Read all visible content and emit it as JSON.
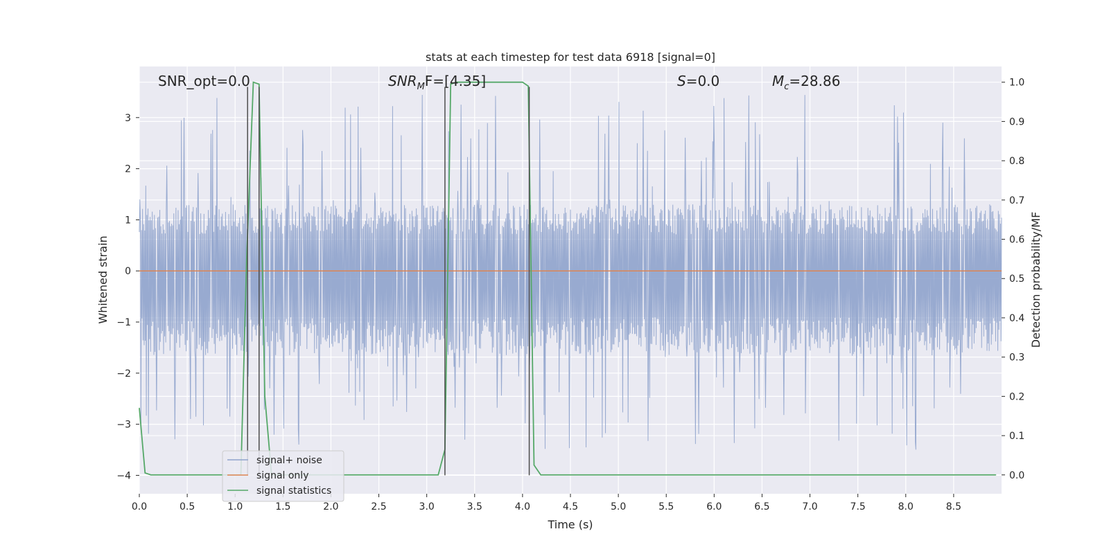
{
  "chart_data": {
    "type": "line",
    "title": "stats at each timestep for test data 6918 [signal=0]",
    "xlabel": "Time (s)",
    "ylabel_left": "Whitened strain",
    "ylabel_right": "Detection probability/MF",
    "xlim": [
      0,
      9
    ],
    "ylim_left": [
      -4.36,
      4.0
    ],
    "ylim_right": [
      -0.048,
      1.04
    ],
    "x_ticks": [
      0.0,
      0.5,
      1.0,
      1.5,
      2.0,
      2.5,
      3.0,
      3.5,
      4.0,
      4.5,
      5.0,
      5.5,
      6.0,
      6.5,
      7.0,
      7.5,
      8.0,
      8.5
    ],
    "x_tick_labels": [
      "0.0",
      "0.5",
      "1.0",
      "1.5",
      "2.0",
      "2.5",
      "3.0",
      "3.5",
      "4.0",
      "4.5",
      "5.0",
      "5.5",
      "6.0",
      "6.5",
      "7.0",
      "7.5",
      "8.0",
      "8.5"
    ],
    "y_ticks_left": [
      3,
      2,
      1,
      0,
      -1,
      -2,
      -3,
      -4
    ],
    "y_tick_labels_left": [
      "3",
      "2",
      "1",
      "0",
      "−1",
      "−2",
      "−3",
      "−4"
    ],
    "y_ticks_right": [
      1.0,
      0.9,
      0.8,
      0.7,
      0.6,
      0.5,
      0.4,
      0.3,
      0.2,
      0.1,
      0.0
    ],
    "y_tick_labels_right": [
      "1.0",
      "0.9",
      "0.8",
      "0.7",
      "0.6",
      "0.5",
      "0.4",
      "0.3",
      "0.2",
      "0.1",
      "0.0"
    ],
    "grid": true,
    "legend_position": "lower-left",
    "annotations": {
      "snr_opt": "SNR_opt=0.0",
      "snr_mf_main": "SNR",
      "snr_mf_sub": "M",
      "snr_mf_rest": "F=[4.35]",
      "s_italic": "S",
      "s_rest": "=0.0",
      "mc_main": "M",
      "mc_sub": "c",
      "mc_rest": "=28.86"
    },
    "series": [
      {
        "name": "signal+ noise",
        "color": "#8fa3cc",
        "axis": "left",
        "envelope": {
          "typical_low": -1.65,
          "typical_high": 1.3,
          "spike_min": -3.5,
          "spike_max": 3.45
        }
      },
      {
        "name": "signal only",
        "color": "#dd8452",
        "axis": "left",
        "x": [
          0.0,
          9.0
        ],
        "y": [
          0.0,
          0.0
        ]
      },
      {
        "name": "signal statistics",
        "color": "#55a868",
        "axis": "right",
        "x": [
          0.0,
          0.06,
          0.12,
          1.06,
          1.12,
          1.19,
          1.25,
          1.31,
          1.38,
          3.12,
          3.19,
          3.25,
          3.31,
          4.0,
          4.06,
          4.12,
          4.19,
          8.94
        ],
        "y": [
          0.17,
          0.005,
          0.0,
          0.0,
          0.55,
          1.0,
          0.995,
          0.2,
          0.0,
          0.0,
          0.065,
          0.995,
          1.0,
          1.0,
          0.99,
          0.025,
          0.0,
          0.0
        ]
      }
    ],
    "vertical_markers": {
      "color": "#4d4d4d",
      "x": [
        1.13,
        1.25,
        3.19,
        4.07
      ],
      "y_top": 3.6,
      "y_bottom": -4.0
    }
  }
}
